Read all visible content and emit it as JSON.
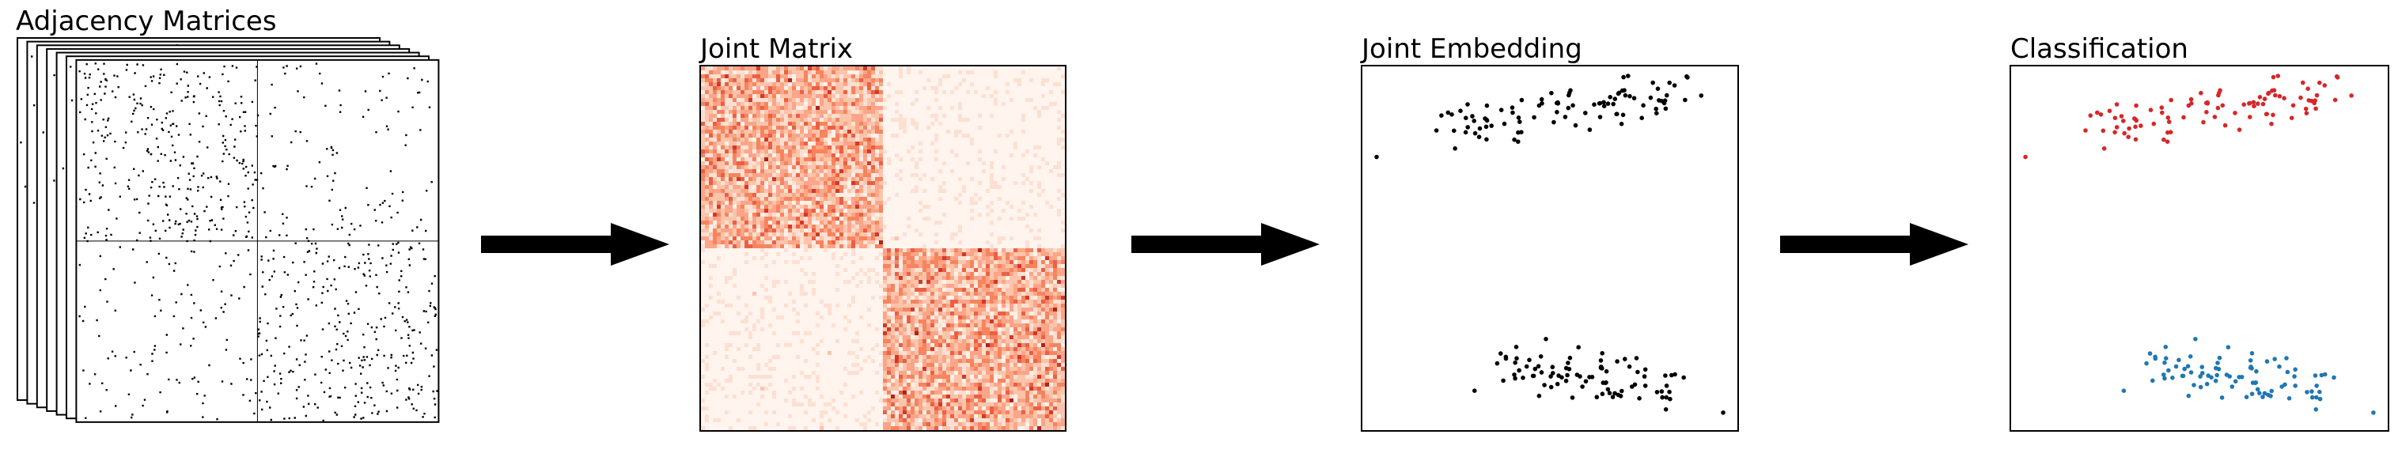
{
  "panels": [
    {
      "title": "Adjacency Matrices"
    },
    {
      "title": "Joint Matrix"
    },
    {
      "title": "Joint Embedding"
    },
    {
      "title": "Classification"
    }
  ],
  "colors": {
    "ink": "#000000",
    "heat_dark": "#b2281a",
    "heat_mid": "#f08a64",
    "heat_light": "#fde4d6",
    "class_a": "#d62728",
    "class_b": "#1f77b4"
  },
  "icons": {
    "arrow": "right-arrow-icon"
  }
}
